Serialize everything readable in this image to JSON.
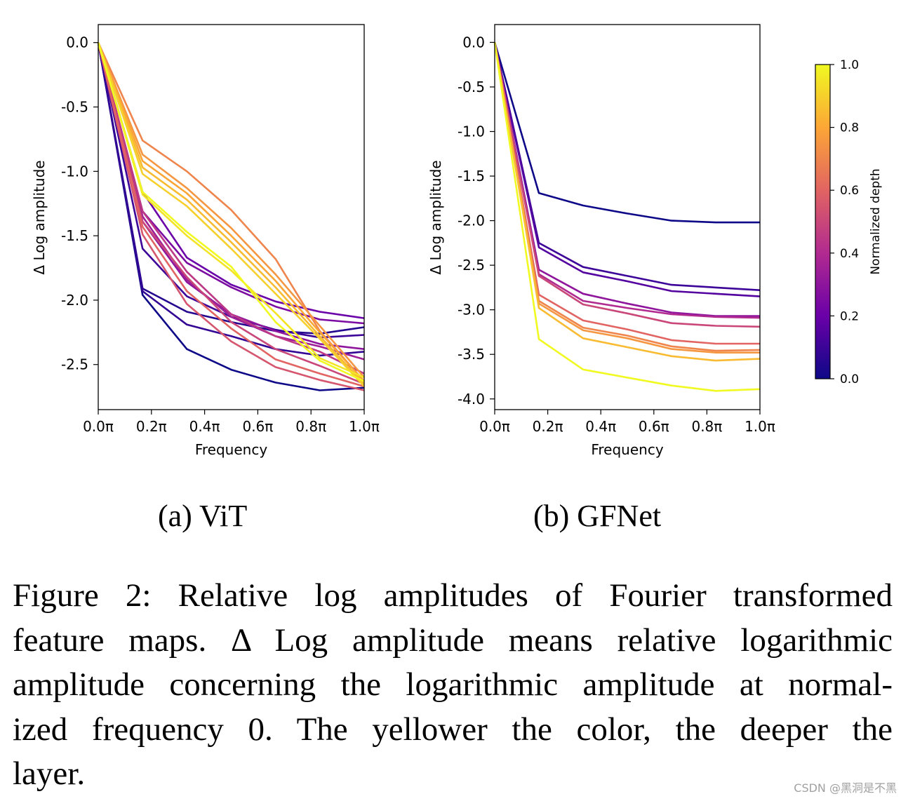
{
  "chart_data": [
    {
      "type": "line",
      "panel_label": "(a) ViT",
      "xlabel": "Frequency",
      "ylabel": "Δ Log amplitude",
      "x": [
        0,
        0.1667,
        0.3333,
        0.5,
        0.6667,
        0.8333,
        1.0
      ],
      "xticks": [
        "0.0π",
        "0.2π",
        "0.4π",
        "0.6π",
        "0.8π",
        "1.0π"
      ],
      "xtick_values": [
        0,
        0.2,
        0.4,
        0.6,
        0.8,
        1.0
      ],
      "yticks": [
        "0.0",
        "-0.5",
        "-1.0",
        "-1.5",
        "-2.0",
        "-2.5"
      ],
      "ytick_values": [
        0,
        -0.5,
        -1.0,
        -1.5,
        -2.0,
        -2.5
      ],
      "xlim": [
        0,
        1.0
      ],
      "ylim": [
        -2.85,
        0.14
      ],
      "grid": false,
      "colormap": "plasma",
      "series": [
        {
          "depth": 0.0,
          "values": [
            0,
            -1.96,
            -2.38,
            -2.54,
            -2.64,
            -2.7,
            -2.68
          ]
        },
        {
          "depth": 0.05,
          "values": [
            0,
            -1.91,
            -2.09,
            -2.17,
            -2.24,
            -2.26,
            -2.21
          ]
        },
        {
          "depth": 0.08,
          "values": [
            0,
            -1.93,
            -2.19,
            -2.28,
            -2.38,
            -2.43,
            -2.4
          ]
        },
        {
          "depth": 0.1,
          "values": [
            0,
            -1.6,
            -1.97,
            -2.13,
            -2.23,
            -2.29,
            -2.27
          ]
        },
        {
          "depth": 0.2,
          "values": [
            0,
            -1.16,
            -1.67,
            -1.88,
            -2.01,
            -2.09,
            -2.14
          ]
        },
        {
          "depth": 0.25,
          "values": [
            0,
            -1.31,
            -1.71,
            -1.9,
            -2.05,
            -2.15,
            -2.18
          ]
        },
        {
          "depth": 0.3,
          "values": [
            0,
            -1.39,
            -1.86,
            -2.11,
            -2.24,
            -2.34,
            -2.38
          ]
        },
        {
          "depth": 0.35,
          "values": [
            0,
            -1.35,
            -1.84,
            -2.13,
            -2.28,
            -2.36,
            -2.46
          ]
        },
        {
          "depth": 0.45,
          "values": [
            0,
            -1.31,
            -1.78,
            -2.11,
            -2.28,
            -2.4,
            -2.57
          ]
        },
        {
          "depth": 0.5,
          "values": [
            0,
            -1.39,
            -1.82,
            -2.17,
            -2.38,
            -2.51,
            -2.65
          ]
        },
        {
          "depth": 0.55,
          "values": [
            0,
            -1.49,
            -2.03,
            -2.32,
            -2.52,
            -2.62,
            -2.7
          ]
        },
        {
          "depth": 0.6,
          "values": [
            0,
            -1.43,
            -1.93,
            -2.22,
            -2.46,
            -2.57,
            -2.67
          ]
        },
        {
          "depth": 0.7,
          "values": [
            0,
            -0.76,
            -1.0,
            -1.3,
            -1.68,
            -2.24,
            -2.63
          ]
        },
        {
          "depth": 0.75,
          "values": [
            0,
            -0.87,
            -1.13,
            -1.44,
            -1.8,
            -2.2,
            -2.6
          ]
        },
        {
          "depth": 0.8,
          "values": [
            0,
            -0.92,
            -1.17,
            -1.5,
            -1.85,
            -2.25,
            -2.63
          ]
        },
        {
          "depth": 0.85,
          "values": [
            0,
            -0.97,
            -1.22,
            -1.55,
            -1.9,
            -2.28,
            -2.65
          ]
        },
        {
          "depth": 0.9,
          "values": [
            0,
            -1.02,
            -1.27,
            -1.6,
            -1.95,
            -2.3,
            -2.67
          ]
        },
        {
          "depth": 0.95,
          "values": [
            0,
            -1.18,
            -1.5,
            -1.77,
            -2.1,
            -2.45,
            -2.6
          ]
        },
        {
          "depth": 1.0,
          "values": [
            0,
            -1.16,
            -1.47,
            -1.74,
            -2.17,
            -2.47,
            -2.63
          ]
        }
      ]
    },
    {
      "type": "line",
      "panel_label": "(b) GFNet",
      "xlabel": "Frequency",
      "ylabel": "Δ Log amplitude",
      "x": [
        0,
        0.1667,
        0.3333,
        0.5,
        0.6667,
        0.8333,
        1.0
      ],
      "xticks": [
        "0.0π",
        "0.2π",
        "0.4π",
        "0.6π",
        "0.8π",
        "1.0π"
      ],
      "xtick_values": [
        0,
        0.2,
        0.4,
        0.6,
        0.8,
        1.0
      ],
      "yticks": [
        "0.0",
        "-0.5",
        "-1.0",
        "-1.5",
        "-2.0",
        "-2.5",
        "-3.0",
        "-3.5",
        "-4.0"
      ],
      "ytick_values": [
        0,
        -0.5,
        -1.0,
        -1.5,
        -2.0,
        -2.5,
        -3.0,
        -3.5,
        -4.0
      ],
      "xlim": [
        0,
        1.0
      ],
      "ylim": [
        -4.12,
        0.2
      ],
      "grid": false,
      "colormap": "plasma",
      "series": [
        {
          "depth": 0.0,
          "values": [
            0,
            -1.69,
            -1.83,
            -1.92,
            -2.0,
            -2.02,
            -2.02
          ]
        },
        {
          "depth": 0.1,
          "values": [
            0,
            -2.25,
            -2.52,
            -2.62,
            -2.72,
            -2.75,
            -2.78
          ]
        },
        {
          "depth": 0.15,
          "values": [
            0,
            -2.3,
            -2.58,
            -2.68,
            -2.79,
            -2.82,
            -2.85
          ]
        },
        {
          "depth": 0.3,
          "values": [
            0,
            -2.55,
            -2.82,
            -2.93,
            -3.03,
            -3.07,
            -3.07
          ]
        },
        {
          "depth": 0.4,
          "values": [
            0,
            -2.6,
            -2.9,
            -2.98,
            -3.05,
            -3.08,
            -3.09
          ]
        },
        {
          "depth": 0.5,
          "values": [
            0,
            -2.62,
            -2.94,
            -3.04,
            -3.15,
            -3.18,
            -3.19
          ]
        },
        {
          "depth": 0.6,
          "values": [
            0,
            -2.83,
            -3.12,
            -3.22,
            -3.34,
            -3.38,
            -3.38
          ]
        },
        {
          "depth": 0.7,
          "values": [
            0,
            -2.9,
            -3.2,
            -3.29,
            -3.41,
            -3.46,
            -3.45
          ]
        },
        {
          "depth": 0.75,
          "values": [
            0,
            -2.93,
            -3.23,
            -3.32,
            -3.44,
            -3.48,
            -3.48
          ]
        },
        {
          "depth": 0.85,
          "values": [
            0,
            -2.98,
            -3.32,
            -3.42,
            -3.52,
            -3.57,
            -3.55
          ]
        },
        {
          "depth": 1.0,
          "values": [
            0,
            -3.33,
            -3.67,
            -3.76,
            -3.85,
            -3.91,
            -3.89
          ]
        }
      ]
    }
  ],
  "colorbar": {
    "label": "Normalized depth",
    "ticks": [
      "0.0",
      "0.2",
      "0.4",
      "0.6",
      "0.8",
      "1.0"
    ],
    "tick_values": [
      0,
      0.2,
      0.4,
      0.6,
      0.8,
      1.0
    ],
    "colormap": "plasma",
    "colors": [
      "#0d0887",
      "#6a00a8",
      "#b12a90",
      "#e16462",
      "#fca636",
      "#f0f921"
    ]
  },
  "caption": {
    "lines": [
      "Figure 2:  Relative log amplitudes of Fourier transformed",
      "feature maps. Δ Log amplitude means relative logarithmic",
      "amplitude concerning the logarithmic amplitude at normal-",
      "ized frequency 0.  The yellower the color, the deeper the",
      "layer."
    ]
  },
  "watermark": "CSDN @黑洞是不黑"
}
